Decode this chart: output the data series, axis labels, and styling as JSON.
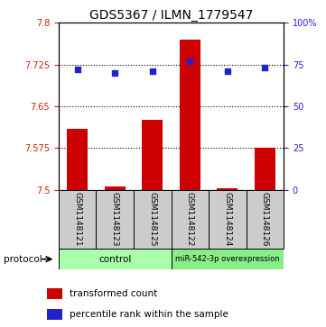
{
  "title": "GDS5367 / ILMN_1779547",
  "samples": [
    "GSM1148121",
    "GSM1148123",
    "GSM1148125",
    "GSM1148122",
    "GSM1148124",
    "GSM1148126"
  ],
  "red_values": [
    7.61,
    7.505,
    7.625,
    7.77,
    7.502,
    7.575
  ],
  "blue_values": [
    72,
    70,
    71,
    77,
    71,
    73
  ],
  "ylim_left": [
    7.5,
    7.8
  ],
  "ylim_right": [
    0,
    100
  ],
  "yticks_left": [
    7.5,
    7.575,
    7.65,
    7.725,
    7.8
  ],
  "yticks_right": [
    0,
    25,
    50,
    75,
    100
  ],
  "ytick_labels_left": [
    "7.5",
    "7.575",
    "7.65",
    "7.725",
    "7.8"
  ],
  "ytick_labels_right": [
    "0",
    "25",
    "50",
    "75",
    "100%"
  ],
  "hlines": [
    7.575,
    7.65,
    7.725
  ],
  "bar_color": "#cc0000",
  "dot_color": "#2222cc",
  "group_colors": [
    "#aaffaa",
    "#88ee88"
  ],
  "group_labels": [
    "control",
    "miR-542-3p overexpression"
  ],
  "group_splits": [
    3
  ],
  "legend_colors": [
    "#cc0000",
    "#2222cc"
  ],
  "legend_labels": [
    "transformed count",
    "percentile rank within the sample"
  ],
  "protocol_label": "protocol",
  "fig_width": 3.61,
  "fig_height": 3.63,
  "dpi": 100,
  "title_fontsize": 10,
  "tick_fontsize": 7,
  "sample_fontsize": 6.5,
  "legend_fontsize": 7.5,
  "bar_width": 0.55
}
